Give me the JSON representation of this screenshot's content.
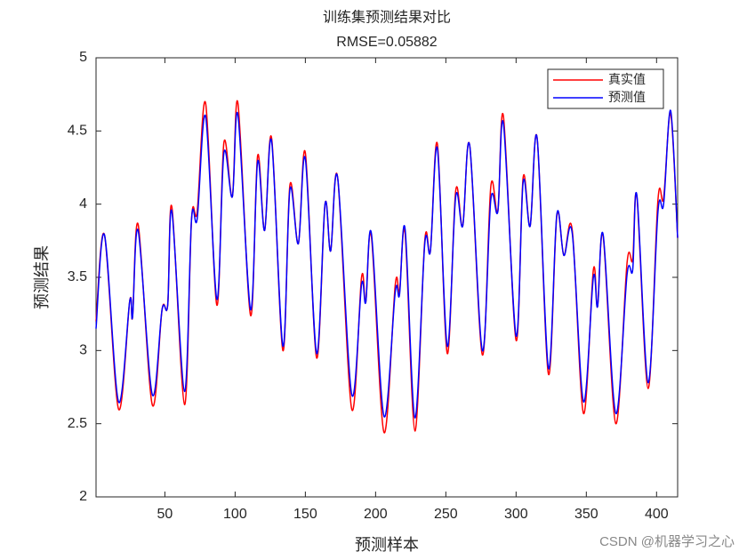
{
  "chart_data": {
    "type": "line",
    "title": "训练集预测结果对比",
    "subtitle": "RMSE=0.05882",
    "xlabel": "预测样本",
    "ylabel": "预测结果",
    "watermark": "CSDN @机器学习之心",
    "x": [
      1,
      7,
      17,
      25,
      27,
      31,
      41,
      48,
      52,
      55,
      64,
      69,
      73,
      79,
      87,
      92,
      98,
      102,
      111,
      116,
      121,
      126,
      134,
      139,
      145,
      150,
      158,
      164,
      168,
      173,
      183,
      190,
      193,
      197,
      206,
      214,
      217,
      221,
      228,
      235,
      239,
      244,
      251,
      257,
      262,
      267,
      276,
      282,
      287,
      291,
      300,
      305,
      310,
      315,
      323,
      329,
      334,
      340,
      348,
      355,
      358,
      362,
      371,
      379,
      383,
      386,
      394,
      401,
      405,
      410,
      415
    ],
    "series": [
      {
        "name": "真实值",
        "color": "#ff0000",
        "values": [
          3.2,
          3.79,
          2.6,
          3.34,
          3.23,
          3.86,
          2.63,
          3.28,
          3.31,
          3.98,
          2.63,
          3.9,
          3.95,
          4.69,
          3.31,
          4.42,
          4.05,
          4.69,
          3.24,
          4.33,
          3.82,
          4.45,
          3.0,
          4.13,
          3.73,
          4.35,
          2.95,
          4.0,
          3.68,
          4.18,
          2.6,
          3.5,
          3.33,
          3.78,
          2.44,
          3.45,
          3.4,
          3.8,
          2.45,
          3.75,
          3.68,
          4.41,
          2.98,
          4.09,
          3.85,
          4.4,
          2.97,
          4.12,
          3.95,
          4.6,
          3.07,
          4.18,
          3.85,
          4.45,
          2.84,
          3.92,
          3.65,
          3.82,
          2.57,
          3.55,
          3.3,
          3.78,
          2.5,
          3.6,
          3.62,
          4.05,
          2.74,
          4.03,
          4.04,
          4.62,
          3.77
        ]
      },
      {
        "name": "预测值",
        "color": "#0000ff",
        "values": [
          3.15,
          3.79,
          2.65,
          3.34,
          3.23,
          3.82,
          2.7,
          3.28,
          3.31,
          3.95,
          2.72,
          3.9,
          3.9,
          4.6,
          3.35,
          4.35,
          4.05,
          4.61,
          3.28,
          4.29,
          3.82,
          4.43,
          3.03,
          4.1,
          3.73,
          4.31,
          2.98,
          4.0,
          3.68,
          4.18,
          2.7,
          3.45,
          3.33,
          3.8,
          2.55,
          3.4,
          3.38,
          3.83,
          2.54,
          3.73,
          3.68,
          4.38,
          3.03,
          4.05,
          3.85,
          4.4,
          3.0,
          4.03,
          3.95,
          4.55,
          3.1,
          4.15,
          3.85,
          4.45,
          2.88,
          3.93,
          3.65,
          3.8,
          2.65,
          3.5,
          3.3,
          3.79,
          2.57,
          3.52,
          3.55,
          4.06,
          2.78,
          3.95,
          4.0,
          4.64,
          3.77
        ]
      }
    ],
    "xlim": [
      1,
      415
    ],
    "ylim": [
      2,
      5
    ],
    "xticks": [
      50,
      100,
      150,
      200,
      250,
      300,
      350,
      400
    ],
    "yticks": [
      2,
      2.5,
      3,
      3.5,
      4,
      4.5,
      5
    ],
    "grid": false,
    "legend": "northeast"
  }
}
